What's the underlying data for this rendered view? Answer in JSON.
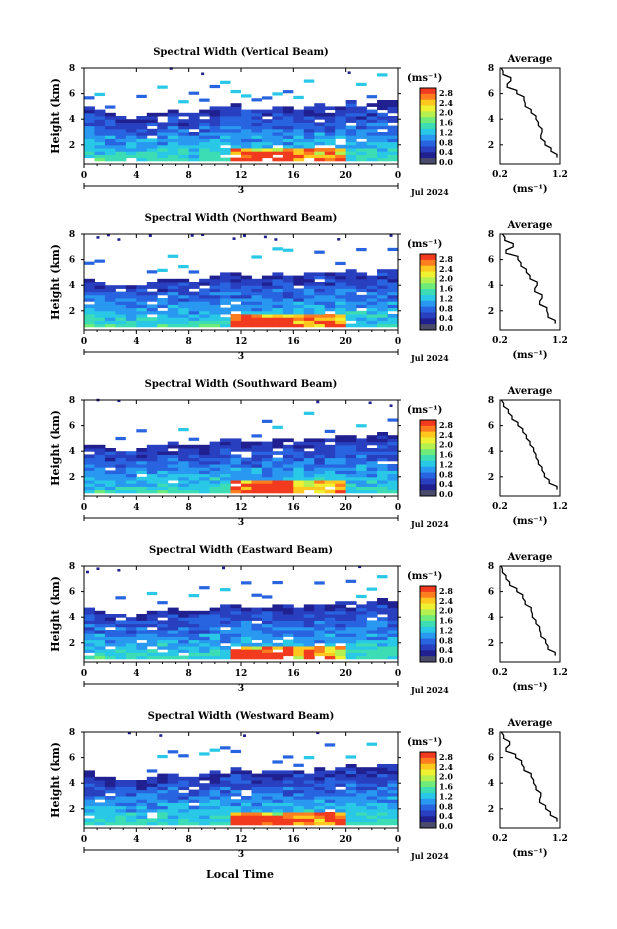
{
  "figure": {
    "xlabel_bottom": "Local Time",
    "colorbar": {
      "unit_label": "(ms⁻¹)",
      "ticks": [
        "2.8",
        "2.4",
        "2.0",
        "1.6",
        "1.2",
        "0.8",
        "0.4",
        "0.0"
      ],
      "colors": [
        "#f23a1e",
        "#ff7d1e",
        "#ffc81e",
        "#f0f032",
        "#b4f050",
        "#6eeb78",
        "#3cdcb4",
        "#28c8e6",
        "#2898f0",
        "#2864e0",
        "#2840c0",
        "#202090",
        "#4a4a6a"
      ]
    },
    "average_title": "Average",
    "average_xlabel": "(ms⁻¹)",
    "average_xticks": [
      "0.2",
      "1.2"
    ],
    "average_yticks": [
      "2",
      "4",
      "6",
      "8"
    ]
  },
  "panels": [
    {
      "title": "Spectral Width (Vertical Beam)",
      "date": "Jul 2024",
      "day_label": "3"
    },
    {
      "title": "Spectral Width (Northward Beam)",
      "date": "Jul 2024",
      "day_label": "3"
    },
    {
      "title": "Spectral Width (Southward Beam)",
      "date": "Jul 2024",
      "day_label": "3"
    },
    {
      "title": "Spectral Width (Eastward Beam)",
      "date": "Jul 2024",
      "day_label": "3"
    },
    {
      "title": "Spectral Width (Westward Beam)",
      "date": "Jul 2024",
      "day_label": "3"
    }
  ],
  "chart_data": [
    {
      "type": "heatmap",
      "title": "Spectral Width (Vertical Beam)",
      "ylabel": "Height (km)",
      "xticks": [
        "0",
        "4",
        "8",
        "12",
        "16",
        "20",
        "0"
      ],
      "yticks": [
        "2",
        "4",
        "6",
        "8"
      ],
      "xlim": [
        0,
        24
      ],
      "ylim": [
        0.5,
        8
      ],
      "zlim": [
        0,
        3
      ],
      "colorbar_ticks": [
        0,
        0.4,
        0.8,
        1.2,
        1.6,
        2.0,
        2.4,
        2.8
      ],
      "top_height": [
        4.9,
        4.6,
        4.3,
        4.2,
        4.0,
        4.1,
        4.3,
        4.5,
        4.7,
        4.5,
        4.4,
        4.6,
        4.8,
        5.0,
        5.1,
        4.8,
        4.6,
        4.7,
        4.9,
        4.8,
        4.7,
        4.9,
        5.1,
        5.0,
        5.2,
        5.3,
        5.0,
        5.2,
        5.4,
        5.3
      ],
      "average": {
        "title": "Average",
        "xlabel": "(ms⁻¹)",
        "xlim": [
          0.2,
          1.2
        ],
        "ylim": [
          0.5,
          8
        ],
        "height": [
          1.0,
          1.5,
          2.0,
          2.5,
          3.0,
          3.5,
          4.0,
          4.5,
          5.0,
          5.5,
          6.0,
          6.5,
          7.0,
          7.5,
          8.0
        ],
        "width": [
          1.15,
          1.05,
          0.95,
          0.88,
          0.9,
          0.84,
          0.8,
          0.72,
          0.62,
          0.6,
          0.48,
          0.32,
          0.38,
          0.25,
          0.22
        ]
      }
    },
    {
      "type": "heatmap",
      "title": "Spectral Width (Northward Beam)",
      "ylabel": "Height (km)",
      "xticks": [
        "0",
        "4",
        "8",
        "12",
        "16",
        "20",
        "0"
      ],
      "yticks": [
        "2",
        "4",
        "6",
        "8"
      ],
      "xlim": [
        0,
        24
      ],
      "ylim": [
        0.5,
        8
      ],
      "zlim": [
        0,
        3
      ],
      "colorbar_ticks": [
        0,
        0.4,
        0.8,
        1.2,
        1.6,
        2.0,
        2.4,
        2.8
      ],
      "top_height": [
        4.4,
        4.2,
        4.0,
        3.9,
        3.9,
        4.0,
        4.2,
        4.3,
        4.5,
        4.3,
        4.2,
        4.4,
        4.6,
        4.8,
        4.9,
        4.6,
        4.5,
        4.6,
        4.8,
        4.7,
        4.6,
        4.8,
        5.0,
        4.9,
        5.0,
        5.1,
        4.9,
        5.0,
        5.2,
        5.1
      ],
      "average": {
        "title": "Average",
        "xlabel": "(ms⁻¹)",
        "xlim": [
          0.2,
          1.2
        ],
        "ylim": [
          0.5,
          8
        ],
        "height": [
          1.0,
          1.5,
          2.0,
          2.5,
          3.0,
          3.5,
          4.0,
          4.5,
          5.0,
          5.5,
          6.0,
          6.5,
          7.0,
          7.5,
          8.0
        ],
        "width": [
          1.12,
          1.0,
          0.98,
          0.86,
          0.9,
          0.78,
          0.82,
          0.7,
          0.64,
          0.55,
          0.5,
          0.3,
          0.42,
          0.28,
          0.24
        ]
      }
    },
    {
      "type": "heatmap",
      "title": "Spectral Width (Southward Beam)",
      "ylabel": "Height (km)",
      "xticks": [
        "0",
        "4",
        "8",
        "12",
        "16",
        "20",
        "0"
      ],
      "yticks": [
        "2",
        "4",
        "6",
        "8"
      ],
      "xlim": [
        0,
        24
      ],
      "ylim": [
        0.5,
        8
      ],
      "zlim": [
        0,
        3
      ],
      "colorbar_ticks": [
        0,
        0.4,
        0.8,
        1.2,
        1.6,
        2.0,
        2.4,
        2.8
      ],
      "top_height": [
        4.5,
        4.3,
        4.1,
        4.0,
        4.0,
        4.2,
        4.3,
        4.5,
        4.6,
        4.4,
        4.3,
        4.5,
        4.7,
        4.9,
        5.0,
        4.7,
        4.6,
        4.7,
        4.9,
        4.8,
        4.7,
        4.9,
        5.0,
        4.9,
        5.1,
        5.2,
        5.0,
        5.1,
        5.3,
        5.2
      ],
      "average": {
        "title": "Average",
        "xlabel": "(ms⁻¹)",
        "xlim": [
          0.2,
          1.2
        ],
        "ylim": [
          0.5,
          8
        ],
        "height": [
          1.0,
          1.5,
          2.0,
          2.5,
          3.0,
          3.5,
          4.0,
          4.5,
          5.0,
          5.5,
          6.0,
          6.5,
          7.0,
          7.5,
          8.0
        ],
        "width": [
          1.15,
          1.02,
          0.94,
          0.9,
          0.84,
          0.8,
          0.76,
          0.7,
          0.64,
          0.58,
          0.5,
          0.4,
          0.34,
          0.26,
          0.22
        ]
      }
    },
    {
      "type": "heatmap",
      "title": "Spectral Width (Eastward Beam)",
      "ylabel": "Height (km)",
      "xticks": [
        "0",
        "4",
        "8",
        "12",
        "16",
        "20",
        "0"
      ],
      "yticks": [
        "2",
        "4",
        "6",
        "8"
      ],
      "xlim": [
        0,
        24
      ],
      "ylim": [
        0.5,
        8
      ],
      "zlim": [
        0,
        3
      ],
      "colorbar_ticks": [
        0,
        0.4,
        0.8,
        1.2,
        1.6,
        2.0,
        2.4,
        2.8
      ],
      "top_height": [
        4.6,
        4.4,
        4.2,
        4.1,
        4.0,
        4.1,
        4.3,
        4.5,
        4.6,
        4.4,
        4.3,
        4.5,
        4.7,
        4.8,
        5.0,
        4.7,
        4.6,
        4.7,
        4.8,
        4.8,
        4.7,
        4.8,
        5.0,
        4.9,
        5.1,
        5.2,
        5.0,
        5.1,
        5.3,
        5.2
      ],
      "average": {
        "title": "Average",
        "xlabel": "(ms⁻¹)",
        "xlim": [
          0.2,
          1.2
        ],
        "ylim": [
          0.5,
          8
        ],
        "height": [
          1.0,
          1.5,
          2.0,
          2.5,
          3.0,
          3.5,
          4.0,
          4.5,
          5.0,
          5.5,
          6.0,
          6.5,
          7.0,
          7.5,
          8.0
        ],
        "width": [
          1.12,
          1.0,
          0.96,
          0.88,
          0.86,
          0.8,
          0.74,
          0.72,
          0.62,
          0.58,
          0.48,
          0.36,
          0.3,
          0.24,
          0.22
        ]
      }
    },
    {
      "type": "heatmap",
      "title": "Spectral Width (Westward Beam)",
      "ylabel": "Height (km)",
      "xticks": [
        "0",
        "4",
        "8",
        "12",
        "16",
        "20",
        "0"
      ],
      "yticks": [
        "2",
        "4",
        "6",
        "8"
      ],
      "xlim": [
        0,
        24
      ],
      "ylim": [
        0.5,
        8
      ],
      "zlim": [
        0,
        3
      ],
      "colorbar_ticks": [
        0,
        0.4,
        0.8,
        1.2,
        1.6,
        2.0,
        2.4,
        2.8
      ],
      "top_height": [
        4.8,
        4.5,
        4.3,
        4.2,
        4.1,
        4.2,
        4.4,
        4.6,
        4.7,
        4.5,
        4.4,
        4.6,
        4.8,
        4.9,
        5.1,
        4.8,
        4.7,
        4.8,
        5.0,
        4.9,
        4.8,
        5.0,
        5.2,
        5.0,
        5.2,
        5.3,
        5.1,
        5.2,
        5.4,
        5.3
      ],
      "average": {
        "title": "Average",
        "xlabel": "(ms⁻¹)",
        "xlim": [
          0.2,
          1.2
        ],
        "ylim": [
          0.5,
          8
        ],
        "height": [
          1.0,
          1.5,
          2.0,
          2.5,
          3.0,
          3.5,
          4.0,
          4.5,
          5.0,
          5.5,
          6.0,
          6.5,
          7.0,
          7.5,
          8.0
        ],
        "width": [
          1.15,
          1.04,
          0.96,
          0.86,
          0.88,
          0.8,
          0.76,
          0.72,
          0.6,
          0.56,
          0.46,
          0.3,
          0.36,
          0.26,
          0.22
        ]
      }
    }
  ]
}
